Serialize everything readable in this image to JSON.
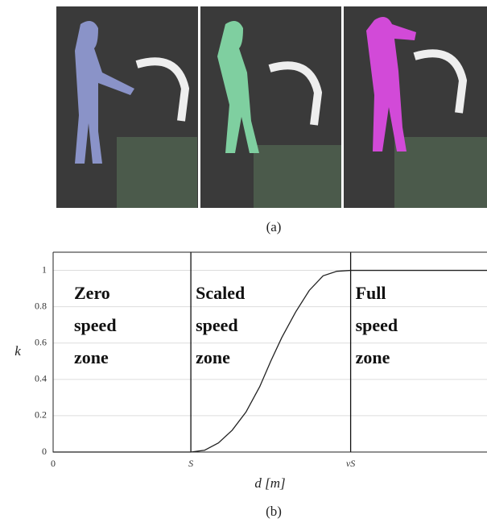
{
  "panel_a_caption": "(a)",
  "chart_data": {
    "type": "line",
    "caption": "(b)",
    "xlabel": "d [m]",
    "ylabel": "k",
    "x": [
      0,
      1,
      1.1,
      1.2,
      1.3,
      1.4,
      1.5,
      1.58,
      1.66,
      1.76,
      1.86,
      1.96,
      2.06,
      2.16,
      3.15
    ],
    "series": [
      {
        "color": "#222222",
        "values": [
          0,
          0,
          0.01,
          0.05,
          0.12,
          0.22,
          0.36,
          0.5,
          0.63,
          0.77,
          0.89,
          0.97,
          0.995,
          1,
          1
        ]
      }
    ],
    "xlim": [
      0,
      3.15
    ],
    "ylim": [
      0,
      1.1
    ],
    "xticks": [
      0,
      {
        "value": 1,
        "label": "S"
      },
      {
        "value": 2.16,
        "label": "νS"
      }
    ],
    "yticks": [
      0,
      0.2,
      0.4,
      0.6,
      0.8,
      1
    ],
    "grid": true,
    "annotations": [
      [
        "Zero",
        "speed",
        "zone"
      ],
      [
        "Scaled",
        "speed",
        "zone"
      ],
      [
        "Full",
        "speed",
        "zone"
      ]
    ]
  }
}
